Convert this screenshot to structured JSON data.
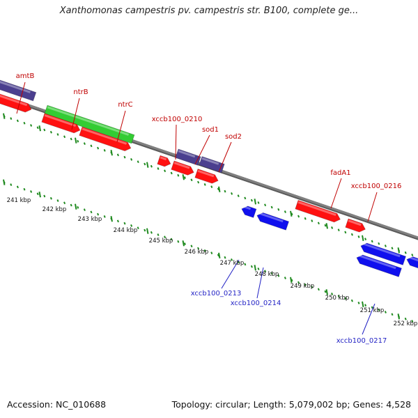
{
  "title": "Xanthomonas campestris pv. campestris str. B100, complete ge...",
  "colors": {
    "forward_label": "#c00000",
    "reverse_label": "#1f1fc4",
    "gene_red": "#ff1111",
    "gene_blue": "#1010ee",
    "gene_purple": "#4b3f8f",
    "gene_green": "#33cc33",
    "backbone": "#808080",
    "tick_green": "#1f8a1f"
  },
  "scale_labels": [
    "241 kbp",
    "242 kbp",
    "243 kbp",
    "244 kbp",
    "245 kbp",
    "246 kbp",
    "247 kbp",
    "248 kbp",
    "249 kbp",
    "250 kbp",
    "251 kbp",
    "252 kbp"
  ],
  "forward_labels": [
    "amtB",
    "ntrB",
    "ntrC",
    "xccb100_0210",
    "sod1",
    "sod2",
    "fadA1",
    "xccb100_0216"
  ],
  "reverse_labels": [
    "xccb100_0213",
    "xccb100_0214",
    "xccb100_0217"
  ],
  "footer": {
    "accession": "Accession: NC_010688",
    "stats": "Topology: circular; Length: 5,079,002 bp; Genes: 4,528"
  }
}
